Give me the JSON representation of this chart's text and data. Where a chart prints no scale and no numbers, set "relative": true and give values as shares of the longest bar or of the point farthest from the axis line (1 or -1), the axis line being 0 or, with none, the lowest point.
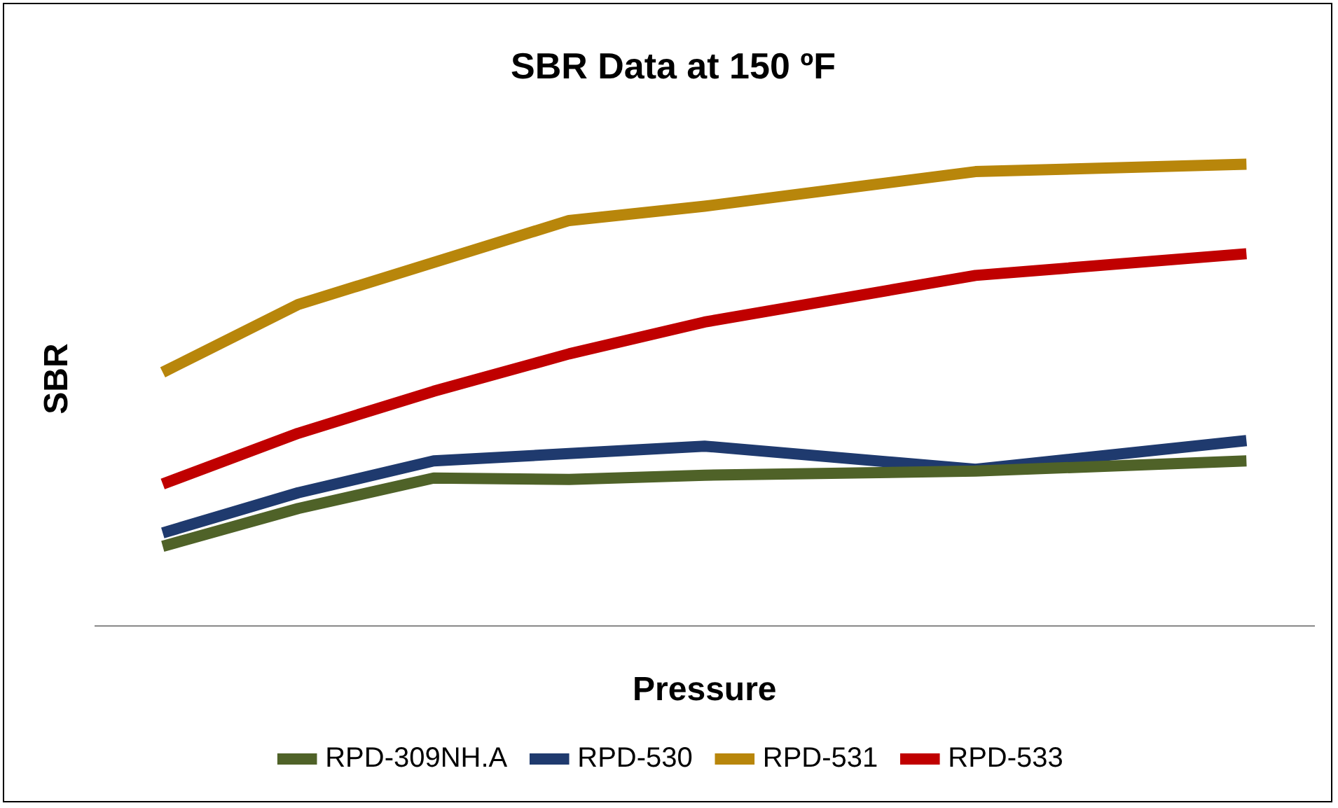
{
  "chart_data": {
    "type": "line",
    "title": "SBR Data at 150 ºF",
    "xlabel": "Pressure",
    "ylabel": "SBR",
    "relative": true,
    "legend": "bottom",
    "grid": false,
    "marker": "none",
    "line_style": "solid",
    "categories": [
      null,
      null,
      null,
      null,
      null,
      null,
      null,
      null,
      null
    ],
    "series": [
      {
        "name": "RPD-309NH.A",
        "color": "#4f6228",
        "values": [
          0.172,
          0.254,
          0.32,
          0.317,
          0.326,
          null,
          0.335,
          null,
          0.357
        ]
      },
      {
        "name": "RPD-530",
        "color": "#1f3a6e",
        "values": [
          0.201,
          0.288,
          0.357,
          0.373,
          0.389,
          null,
          0.339,
          null,
          0.401
        ]
      },
      {
        "name": "RPD-531",
        "color": "#b8860b",
        "values": [
          0.549,
          0.696,
          0.787,
          0.878,
          0.909,
          null,
          0.984,
          null,
          1
        ]
      },
      {
        "name": "RPD-533",
        "color": "#c00000",
        "values": [
          0.307,
          0.417,
          0.508,
          0.589,
          0.658,
          null,
          0.759,
          null,
          0.806
        ]
      }
    ]
  }
}
